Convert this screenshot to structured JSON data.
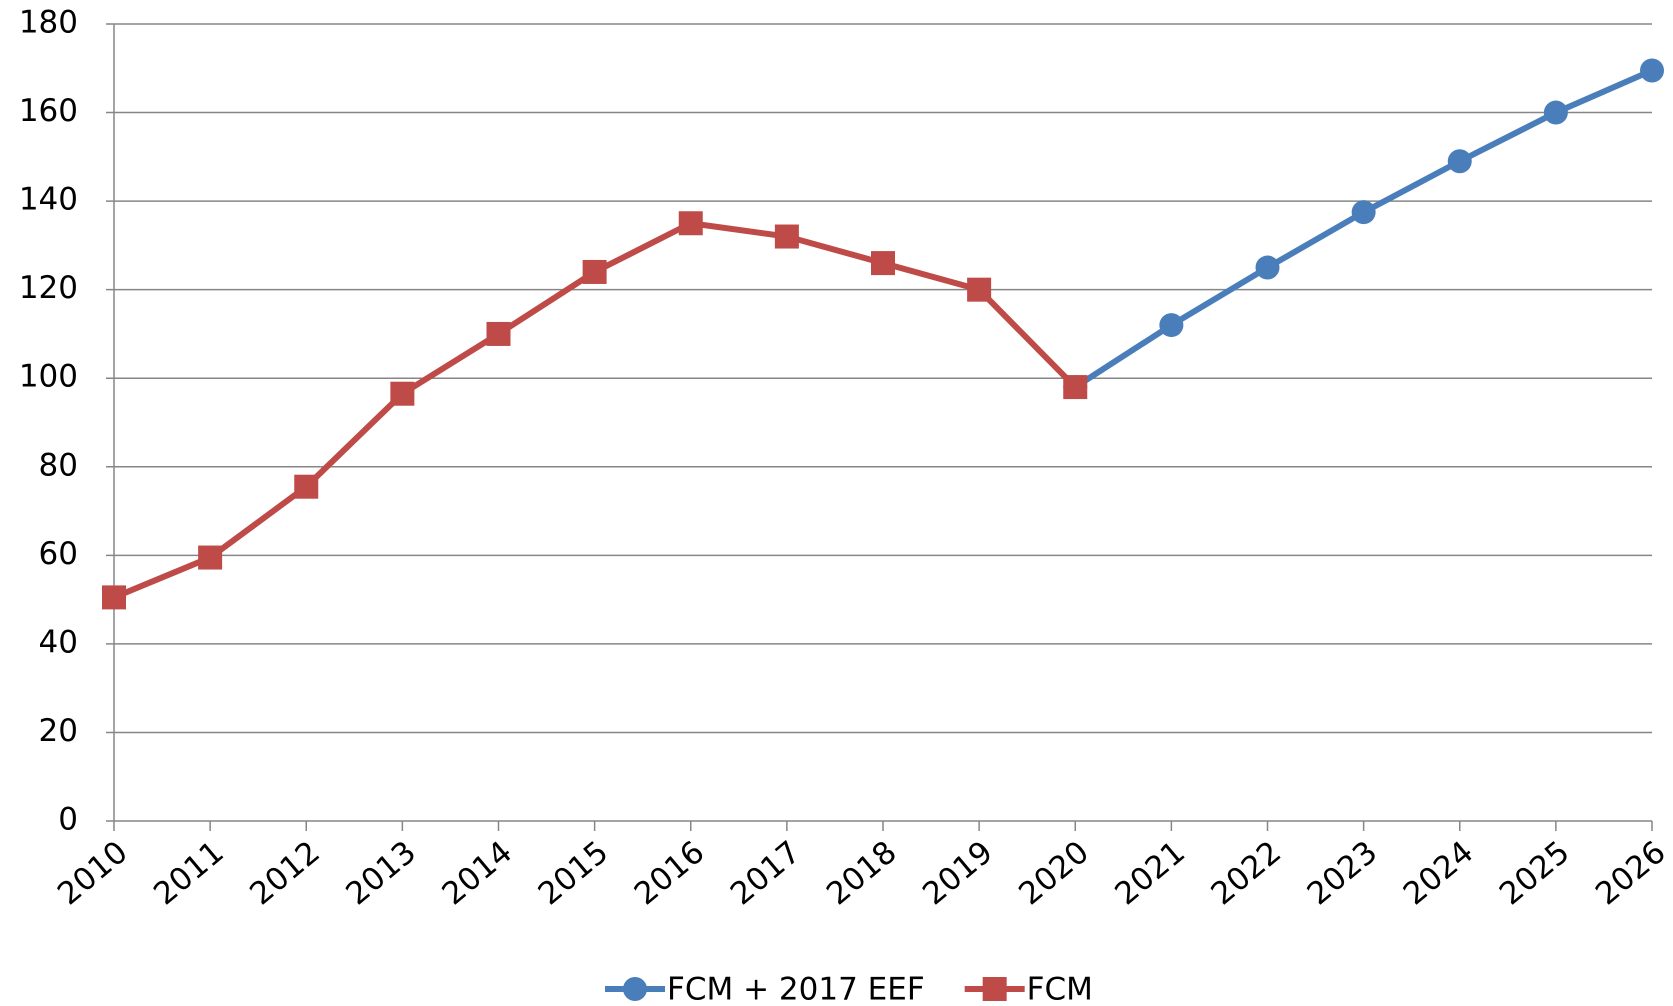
{
  "chart_data": {
    "type": "line",
    "categories": [
      "2010",
      "2011",
      "2012",
      "2013",
      "2014",
      "2015",
      "2016",
      "2017",
      "2018",
      "2019",
      "2020",
      "2021",
      "2022",
      "2023",
      "2024",
      "2025",
      "2026"
    ],
    "series": [
      {
        "name": "FCM + 2017 EEF",
        "color": "#4a7ebb",
        "marker": "circle",
        "values": [
          null,
          null,
          null,
          null,
          null,
          null,
          null,
          null,
          null,
          null,
          98,
          112,
          125,
          137.5,
          149,
          160,
          169.5
        ]
      },
      {
        "name": "FCM",
        "color": "#be4b48",
        "marker": "square",
        "values": [
          50.5,
          59.5,
          75.5,
          96.5,
          110,
          124,
          135,
          132,
          126,
          120,
          98,
          null,
          null,
          null,
          null,
          null,
          null
        ]
      }
    ],
    "ylim": [
      0,
      180
    ],
    "yticks": [
      0,
      20,
      40,
      60,
      80,
      100,
      120,
      140,
      160,
      180
    ],
    "grid": true,
    "legend": "bottom"
  }
}
